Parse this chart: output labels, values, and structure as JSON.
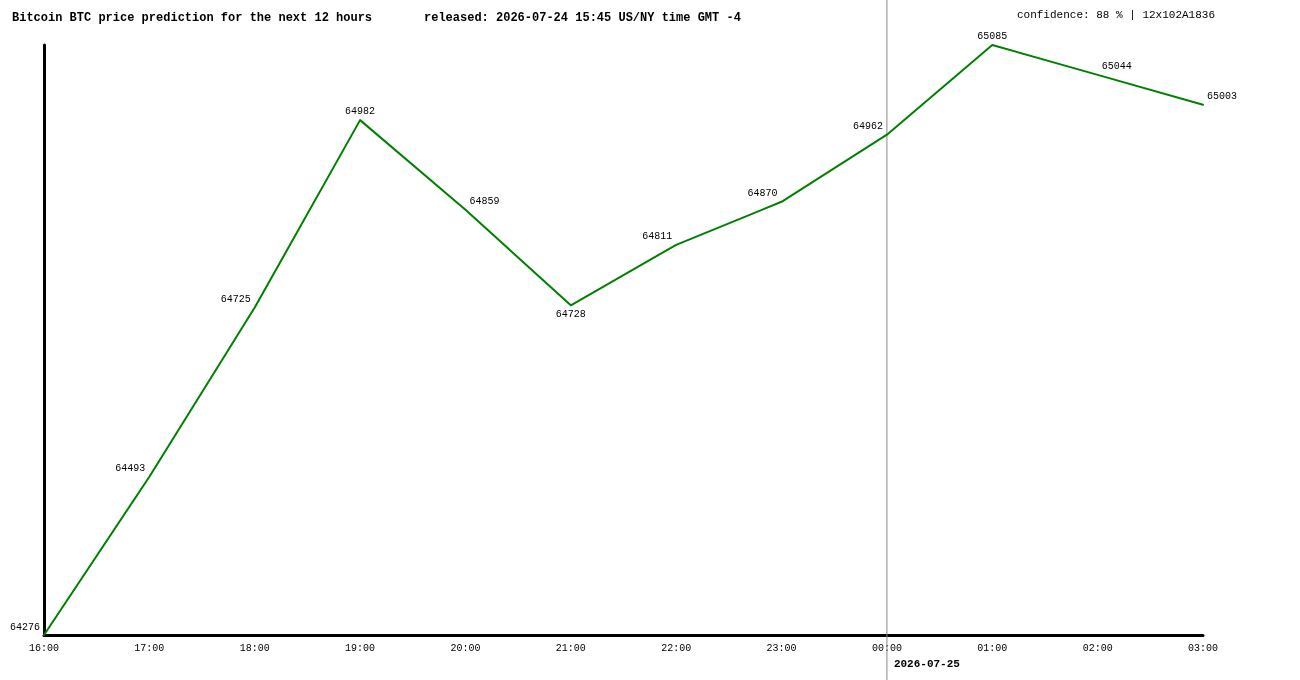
{
  "chart_data": {
    "type": "line",
    "title": "Bitcoin BTC price prediction for the next 12 hours",
    "subtitle": "released: 2026-07-24 15:45 US/NY time GMT -4",
    "annotations": [
      "confidence: 88 % | 12x102A1836"
    ],
    "categories": [
      "16:00",
      "17:00",
      "18:00",
      "19:00",
      "20:00",
      "21:00",
      "22:00",
      "23:00",
      "00:00",
      "01:00",
      "02:00",
      "03:00"
    ],
    "series": [
      {
        "color": "#008000",
        "values": [
          64276,
          64493,
          64725,
          64982,
          64859,
          64728,
          64811,
          64870,
          64962,
          65085,
          65044,
          65003
        ]
      }
    ],
    "data_labels": true,
    "tick_labels": "x",
    "marker": "none",
    "line_style": "solid",
    "ref_lines": [
      {
        "axis": "x",
        "value": "00:00",
        "label": "2026-07-25",
        "color": "#888888"
      }
    ]
  }
}
